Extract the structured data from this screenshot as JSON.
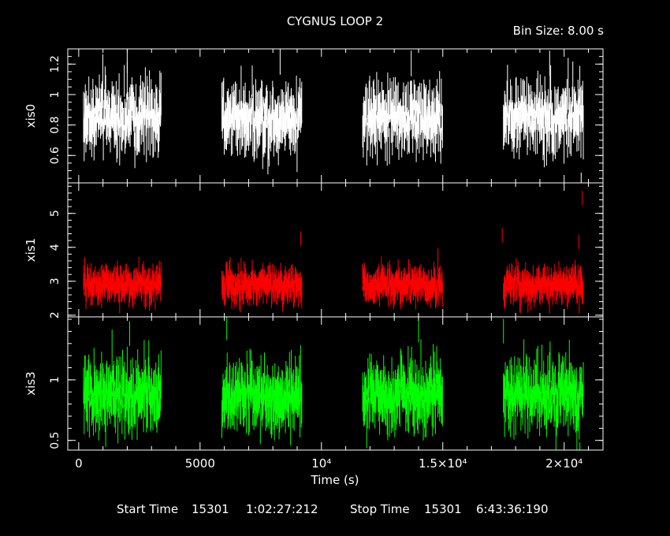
{
  "title": "CYGNUS LOOP 2",
  "bin_size": "Bin Size: 8.00 s",
  "footer": {
    "start_label": "Start Time",
    "start_day": "15301",
    "start_clock": "1:02:27:212",
    "stop_label": "Stop Time",
    "stop_day": "15301",
    "stop_clock": "6:43:36:190"
  },
  "colors": {
    "background": "#000000",
    "frame": "#ffffff",
    "xis0": "#ffffff",
    "xis1": "#ff0000",
    "xis3": "#00ff00"
  },
  "chart_data": {
    "type": "line",
    "xlabel": "Time (s)",
    "xlim": [
      -450,
      21600
    ],
    "x_ticks": [
      {
        "value": 0,
        "label": "0"
      },
      {
        "value": 5000,
        "label": "5000"
      },
      {
        "value": 10000,
        "label": "10⁴"
      },
      {
        "value": 15000,
        "label": "1.5×10⁴"
      },
      {
        "value": 20000,
        "label": "2×10⁴"
      }
    ],
    "observation_windows": [
      [
        200,
        3400
      ],
      [
        5900,
        9200
      ],
      [
        11700,
        15000
      ],
      [
        17500,
        20800
      ]
    ],
    "series": [
      {
        "name": "xis0",
        "color": "#ffffff",
        "ylim": [
          0.42,
          1.3
        ],
        "y_ticks": [
          {
            "value": 0.6,
            "label": "0.6"
          },
          {
            "value": 0.8,
            "label": "0.8"
          },
          {
            "value": 1.0,
            "label": "1"
          },
          {
            "value": 1.2,
            "label": "1.2"
          }
        ],
        "mean": 0.85,
        "scatter": 0.12,
        "error": 0.14,
        "points": [
          [
            2000,
            1.28
          ],
          [
            8300,
            1.27
          ],
          [
            13700,
            1.26
          ],
          [
            19400,
            1.26
          ],
          [
            20700,
            0.46
          ]
        ]
      },
      {
        "name": "xis1",
        "color": "#ff0000",
        "ylim": [
          1.95,
          5.9
        ],
        "y_ticks": [
          {
            "value": 2,
            "label": "2"
          },
          {
            "value": 3,
            "label": "3"
          },
          {
            "value": 4,
            "label": "4"
          },
          {
            "value": 5,
            "label": "5"
          }
        ],
        "mean": 2.9,
        "scatter": 0.25,
        "error": 0.35,
        "points": [
          [
            9150,
            4.4
          ],
          [
            14800,
            3.9
          ],
          [
            17450,
            4.5
          ],
          [
            20600,
            4.3
          ],
          [
            20750,
            5.6
          ]
        ]
      },
      {
        "name": "xis3",
        "color": "#00ff00",
        "ylim": [
          0.42,
          1.52
        ],
        "y_ticks": [
          {
            "value": 0.5,
            "label": "0.5"
          },
          {
            "value": 1.0,
            "label": "1"
          }
        ],
        "mean": 0.88,
        "scatter": 0.15,
        "error": 0.17,
        "points": [
          [
            2100,
            1.45
          ],
          [
            6100,
            1.5
          ],
          [
            14000,
            1.48
          ],
          [
            17500,
            1.47
          ],
          [
            20650,
            0.45
          ]
        ]
      }
    ]
  }
}
